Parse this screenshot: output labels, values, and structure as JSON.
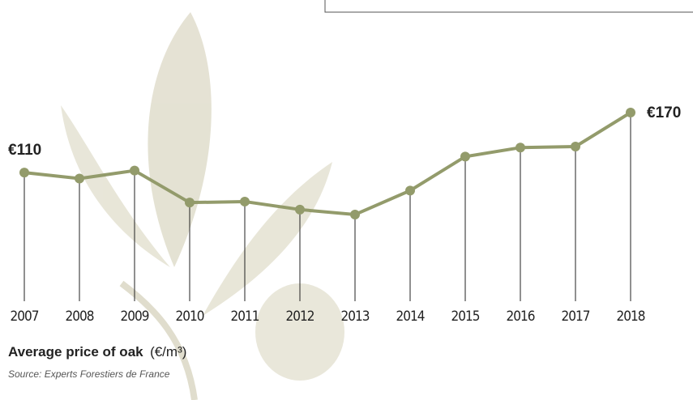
{
  "chart_data": {
    "type": "line",
    "title": "Average price of oak",
    "unit": "(€/m³)",
    "source": "Source: Experts Forestiers de France",
    "categories": [
      "2007",
      "2008",
      "2009",
      "2010",
      "2011",
      "2012",
      "2013",
      "2014",
      "2015",
      "2016",
      "2017",
      "2018"
    ],
    "series": [
      {
        "name": "Average price of oak",
        "color": "#939b6b",
        "values": [
          110,
          104,
          112,
          80,
          81,
          73,
          68,
          92,
          126,
          135,
          136,
          170
        ],
        "value_labels": [
          "€110",
          null,
          null,
          null,
          null,
          null,
          null,
          null,
          null,
          null,
          null,
          "€170"
        ]
      }
    ]
  }
}
